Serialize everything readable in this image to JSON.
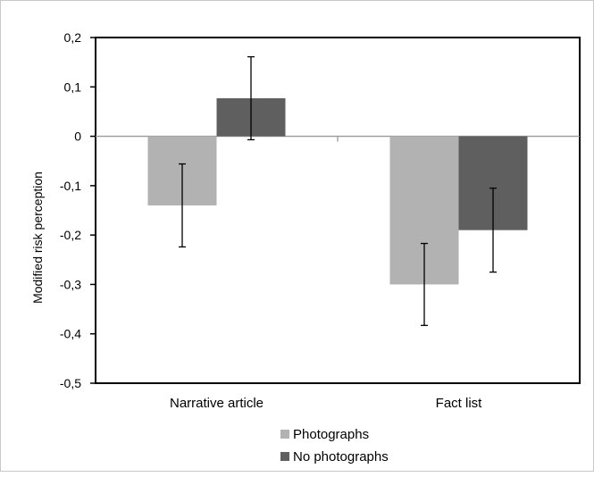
{
  "chart_data": {
    "type": "bar",
    "title": "",
    "xlabel": "",
    "ylabel": "Modified risk perception",
    "categories": [
      "Narrative article",
      "Fact list"
    ],
    "series": [
      {
        "name": "Photographs",
        "values": [
          -0.14,
          -0.3
        ],
        "errors": [
          0.084,
          0.083
        ],
        "color": "#b2b2b2"
      },
      {
        "name": "No photographs",
        "values": [
          0.077,
          -0.19
        ],
        "errors": [
          0.084,
          0.085
        ],
        "color": "#5f5f5f"
      }
    ],
    "ylim": [
      -0.5,
      0.2
    ],
    "yticks": [
      0.2,
      0.1,
      0,
      -0.1,
      -0.2,
      -0.3,
      -0.4,
      -0.5
    ],
    "ytick_labels": [
      "0,2",
      "0,1",
      "0",
      "-0,1",
      "-0,2",
      "-0,3",
      "-0,4",
      "-0,5"
    ],
    "grid": false,
    "legend_position": "bottom"
  }
}
